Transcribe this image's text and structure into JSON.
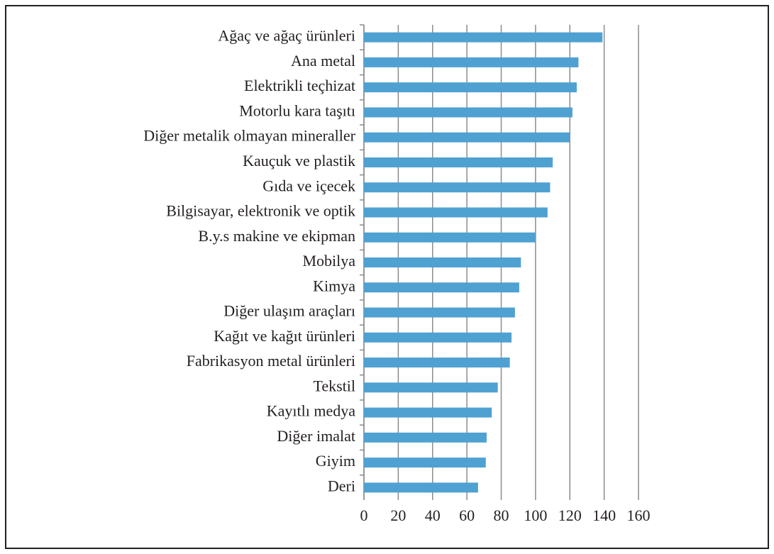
{
  "chart_data": {
    "type": "hbar",
    "categories": [
      "Ağaç ve ağaç ürünleri",
      "Ana metal",
      "Elektrikli teçhizat",
      "Motorlu kara taşıtı",
      "Diğer metalik olmayan mineraller",
      "Kauçuk ve plastik",
      "Gıda ve içecek",
      "Bilgisayar, elektronik ve optik",
      "B.y.s makine ve ekipman",
      "Mobilya",
      "Kimya",
      "Diğer ulaşım araçları",
      "Kağıt ve kağıt ürünleri",
      "Fabrikasyon metal ürünleri",
      "Tekstil",
      "Kayıtlı medya",
      "Diğer imalat",
      "Giyim",
      "Deri"
    ],
    "values": [
      139,
      125,
      124,
      121.5,
      120,
      110,
      108.5,
      107,
      100,
      91.5,
      90.5,
      88,
      86,
      85,
      78,
      74.5,
      71.5,
      71,
      66.5
    ],
    "color": "#4fa1d2",
    "xlim": [
      0,
      160
    ],
    "xticks": [
      0,
      20,
      40,
      60,
      80,
      100,
      120,
      140,
      160
    ],
    "grid": true
  }
}
